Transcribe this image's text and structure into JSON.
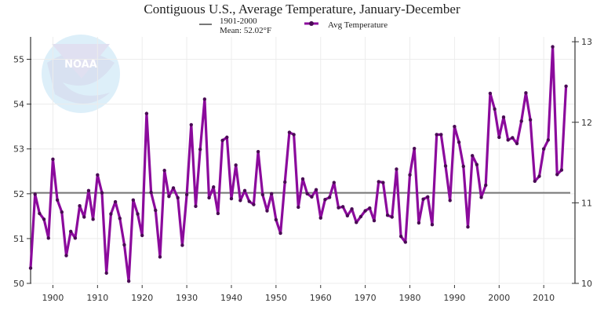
{
  "chart_data": {
    "type": "line",
    "title": "Contiguous U.S., Average Temperature, January-December",
    "xlabel": "",
    "ylabel": "",
    "xlim": [
      1895,
      2017
    ],
    "ylim": [
      50,
      55.5
    ],
    "y2lim": [
      10,
      13.06
    ],
    "grid": true,
    "legend": "top",
    "x_ticks": [
      "1900",
      "1910",
      "1920",
      "1930",
      "1940",
      "1950",
      "1960",
      "1970",
      "1980",
      "1990",
      "2000",
      "2010"
    ],
    "y_ticks": [
      "50",
      "51",
      "52",
      "53",
      "54",
      "55"
    ],
    "y2_ticks": [
      "10",
      "11",
      "12",
      "13"
    ],
    "reference_line": {
      "label_line1": "1901-2000",
      "label_line2": "Mean: 52.02°F",
      "value": 52.02,
      "color": "#777777"
    },
    "series": [
      {
        "name": "Avg Temperature",
        "color": "#8b0a9c",
        "x": [
          1895,
          1896,
          1897,
          1898,
          1899,
          1900,
          1901,
          1902,
          1903,
          1904,
          1905,
          1906,
          1907,
          1908,
          1909,
          1910,
          1911,
          1912,
          1913,
          1914,
          1915,
          1916,
          1917,
          1918,
          1919,
          1920,
          1921,
          1922,
          1923,
          1924,
          1925,
          1926,
          1927,
          1928,
          1929,
          1930,
          1931,
          1932,
          1933,
          1934,
          1935,
          1936,
          1937,
          1938,
          1939,
          1940,
          1941,
          1942,
          1943,
          1944,
          1945,
          1946,
          1947,
          1948,
          1949,
          1950,
          1951,
          1952,
          1953,
          1954,
          1955,
          1956,
          1957,
          1958,
          1959,
          1960,
          1961,
          1962,
          1963,
          1964,
          1965,
          1966,
          1967,
          1968,
          1969,
          1970,
          1971,
          1972,
          1973,
          1974,
          1975,
          1976,
          1977,
          1978,
          1979,
          1980,
          1981,
          1982,
          1983,
          1984,
          1985,
          1986,
          1987,
          1988,
          1989,
          1990,
          1991,
          1992,
          1993,
          1994,
          1995,
          1996,
          1997,
          1998,
          1999,
          2000,
          2001,
          2002,
          2003,
          2004,
          2005,
          2006,
          2007,
          2008,
          2009,
          2010,
          2011,
          2012,
          2013,
          2014,
          2015
        ],
        "values": [
          50.34,
          51.99,
          51.56,
          51.43,
          51.01,
          52.77,
          51.86,
          51.59,
          50.62,
          51.16,
          51.01,
          51.73,
          51.48,
          52.07,
          51.43,
          52.42,
          52.02,
          50.23,
          51.55,
          51.82,
          51.45,
          50.86,
          50.05,
          51.86,
          51.55,
          51.07,
          53.79,
          52.03,
          51.63,
          50.59,
          52.52,
          51.94,
          52.13,
          51.91,
          50.85,
          51.98,
          53.54,
          51.72,
          52.99,
          54.11,
          51.91,
          52.15,
          51.56,
          53.19,
          53.26,
          51.89,
          52.64,
          51.85,
          52.07,
          51.83,
          51.76,
          52.94,
          51.98,
          51.62,
          52.0,
          51.42,
          51.12,
          52.26,
          53.37,
          53.32,
          51.7,
          52.33,
          52.0,
          51.93,
          52.09,
          51.46,
          51.87,
          51.92,
          52.25,
          51.69,
          51.71,
          51.51,
          51.66,
          51.36,
          51.49,
          51.62,
          51.68,
          51.4,
          52.27,
          52.25,
          51.52,
          51.48,
          52.55,
          51.05,
          50.92,
          52.42,
          53.01,
          51.35,
          51.88,
          51.93,
          51.31,
          53.32,
          53.32,
          52.62,
          51.85,
          53.5,
          53.15,
          52.61,
          51.26,
          52.85,
          52.65,
          51.92,
          52.19,
          54.24,
          53.89,
          53.26,
          53.71,
          53.2,
          53.25,
          53.12,
          53.62,
          54.25,
          53.65,
          52.28,
          52.39,
          53.0,
          53.2,
          55.28,
          52.43,
          52.53,
          54.4
        ]
      }
    ]
  },
  "legend": {
    "mean_line1": "1901-2000",
    "mean_line2": "Mean: 52.02°F",
    "series_label": "Avg Temperature"
  },
  "watermark": {
    "text_center": "NOAA",
    "text_ring_top": "NATIONAL OCEANIC AND ATMOSPHERIC ADMINISTRATION",
    "text_ring_bottom": "U.S. DEPARTMENT OF COMMERCE"
  }
}
